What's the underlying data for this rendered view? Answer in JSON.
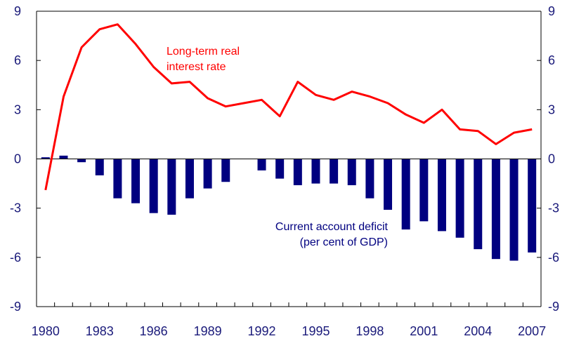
{
  "chart_data": {
    "type": "bar+line",
    "x": [
      1980,
      1981,
      1982,
      1983,
      1984,
      1985,
      1986,
      1987,
      1988,
      1989,
      1990,
      1991,
      1992,
      1993,
      1994,
      1995,
      1996,
      1997,
      1998,
      1999,
      2000,
      2001,
      2002,
      2003,
      2004,
      2005,
      2006,
      2007
    ],
    "x_tick_labels": [
      "1980",
      "1983",
      "1986",
      "1989",
      "1992",
      "1995",
      "1998",
      "2001",
      "2004",
      "2007"
    ],
    "y_tick_labels": [
      "9",
      "6",
      "3",
      "0",
      "-3",
      "-6",
      "-9"
    ],
    "ylim": [
      -9,
      9
    ],
    "grid": false,
    "series": [
      {
        "name": "Long-term real interest rate",
        "type": "line",
        "color": "#ff0000",
        "values": [
          -1.9,
          3.8,
          6.8,
          7.9,
          8.2,
          7.0,
          5.6,
          4.6,
          4.7,
          3.7,
          3.2,
          3.4,
          3.6,
          2.6,
          4.7,
          3.9,
          3.6,
          4.1,
          3.8,
          3.4,
          2.7,
          2.2,
          3.0,
          1.8,
          1.7,
          0.9,
          1.6,
          1.8
        ]
      },
      {
        "name": "Current account deficit (per cent of GDP)",
        "type": "bar",
        "color": "#000080",
        "values": [
          0.1,
          0.2,
          -0.2,
          -1.0,
          -2.4,
          -2.7,
          -3.3,
          -3.4,
          -2.4,
          -1.8,
          -1.4,
          0.0,
          -0.7,
          -1.2,
          -1.6,
          -1.5,
          -1.5,
          -1.6,
          -2.4,
          -3.1,
          -4.3,
          -3.8,
          -4.4,
          -4.8,
          -5.5,
          -6.1,
          -6.2,
          -5.7
        ]
      }
    ],
    "annotations": [
      {
        "lines": [
          "Long-term real",
          "interest rate"
        ],
        "color": "#ff0000"
      },
      {
        "lines": [
          "Current account deficit",
          "(per cent of GDP)"
        ],
        "color": "#000080"
      }
    ]
  }
}
